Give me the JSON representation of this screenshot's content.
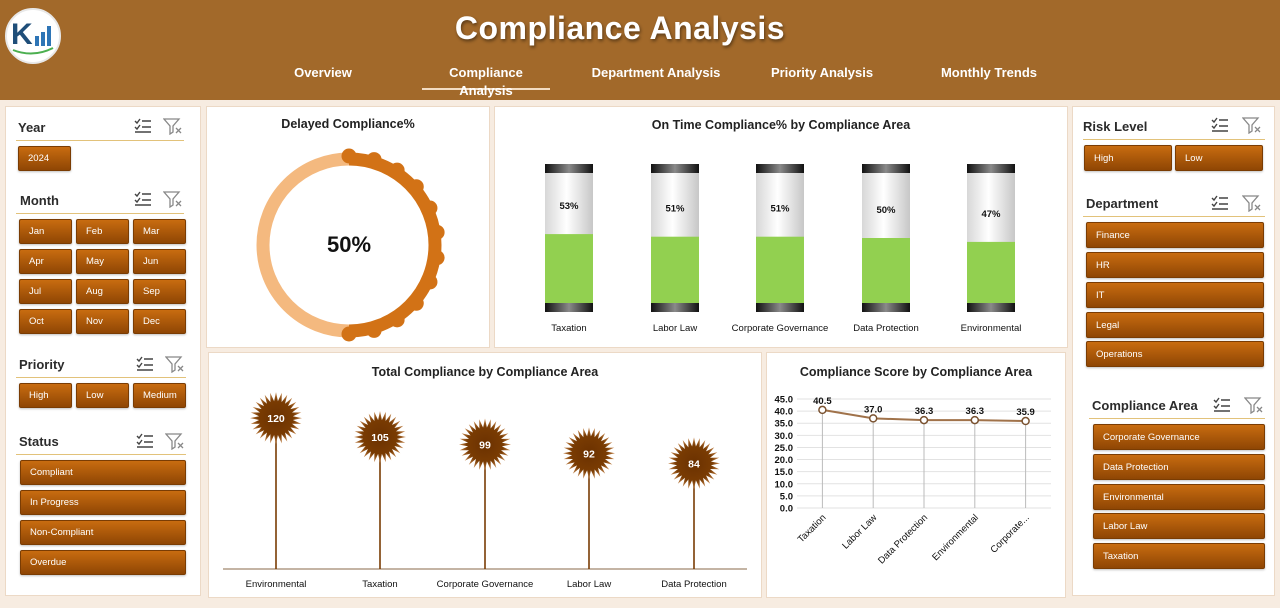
{
  "header": {
    "title": "Compliance Analysis",
    "tabs": [
      {
        "label": "Overview",
        "active": false
      },
      {
        "label": "Compliance Analysis",
        "active": true
      },
      {
        "label": "Department Analysis",
        "active": false
      },
      {
        "label": "Priority Analysis",
        "active": false
      },
      {
        "label": "Monthly Trends",
        "active": false
      }
    ]
  },
  "slicers": {
    "year": {
      "title": "Year",
      "items": [
        "2024"
      ]
    },
    "month": {
      "title": "Month",
      "items": [
        "Jan",
        "Feb",
        "Mar",
        "Apr",
        "May",
        "Jun",
        "Jul",
        "Aug",
        "Sep",
        "Oct",
        "Nov",
        "Dec"
      ]
    },
    "priority": {
      "title": "Priority",
      "items": [
        "High",
        "Low",
        "Medium"
      ]
    },
    "status": {
      "title": "Status",
      "items": [
        "Compliant",
        "In Progress",
        "Non-Compliant",
        "Overdue"
      ]
    },
    "risk_level": {
      "title": "Risk Level",
      "items": [
        "High",
        "Low"
      ]
    },
    "department": {
      "title": "Department",
      "items": [
        "Finance",
        "HR",
        "IT",
        "Legal",
        "Operations"
      ]
    },
    "compliance_area": {
      "title": "Compliance Area",
      "items": [
        "Corporate Governance",
        "Data Protection",
        "Environmental",
        "Labor Law",
        "Taxation"
      ]
    }
  },
  "icons": {
    "multi_select": "multi-select-list-icon",
    "clear_filter": "clear-filter-icon"
  },
  "colors": {
    "accent": "#a2692a",
    "button": "#b35c0a",
    "bar_fill": "#92d050",
    "donut_main": "#d27216",
    "donut_rest": "#f4b97f",
    "lollipop": "#7a3c03",
    "line": "#a0724a"
  },
  "chart_data": [
    {
      "type": "pie",
      "title": "Delayed Compliance%",
      "center_label": "50%",
      "values": [
        50,
        50
      ]
    },
    {
      "type": "bar",
      "title": "On Time Compliance% by Compliance Area",
      "categories": [
        "Taxation",
        "Labor Law",
        "Corporate Governance",
        "Data Protection",
        "Environmental"
      ],
      "values": [
        53,
        51,
        51,
        50,
        47
      ],
      "labels": [
        "53%",
        "51%",
        "51%",
        "50%",
        "47%"
      ],
      "ylim": [
        0,
        100
      ]
    },
    {
      "type": "bar",
      "title": "Total Compliance by Compliance Area",
      "categories": [
        "Environmental",
        "Taxation",
        "Corporate Governance",
        "Labor Law",
        "Data Protection"
      ],
      "values": [
        120,
        105,
        99,
        92,
        84
      ]
    },
    {
      "type": "line",
      "title": "Compliance Score by Compliance Area",
      "categories": [
        "Taxation",
        "Labor Law",
        "Data Protection",
        "Environmental",
        "Corporate..."
      ],
      "values": [
        40.5,
        37.0,
        36.3,
        36.3,
        35.9
      ],
      "labels": [
        "40.5",
        "37.0",
        "36.3",
        "36.3",
        "35.9"
      ],
      "yticks": [
        "45.0",
        "40.0",
        "35.0",
        "30.0",
        "25.0",
        "20.0",
        "15.0",
        "10.0",
        "5.0",
        "0.0"
      ],
      "ylim": [
        0,
        45
      ],
      "grid": true
    }
  ]
}
